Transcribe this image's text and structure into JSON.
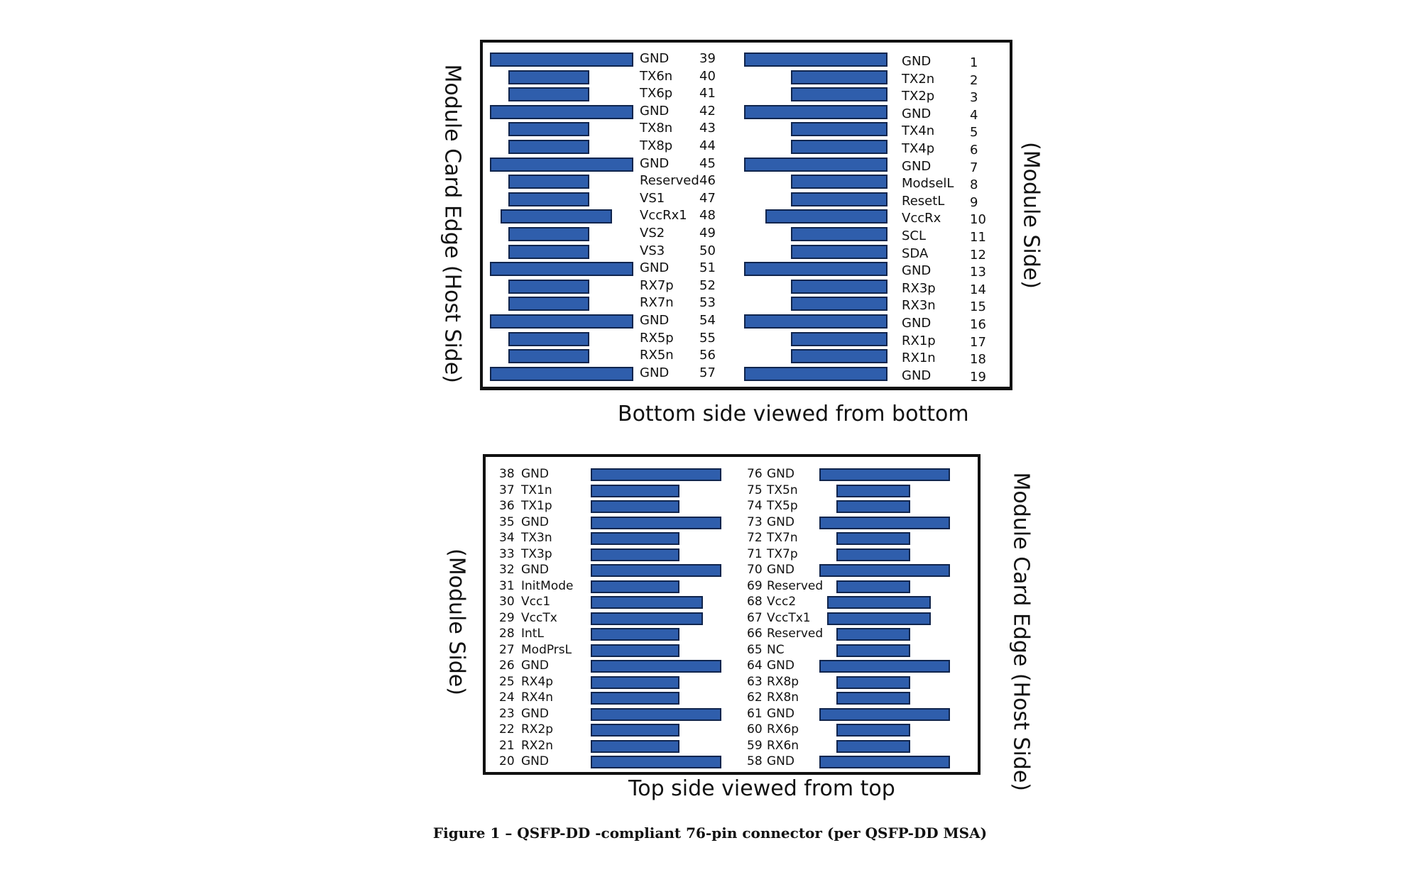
{
  "bottom_view": {
    "caption": "Bottom side viewed from bottom",
    "left_side_label": "Module Card Edge (Host Side)",
    "right_side_label": "(Module Side)",
    "left_column": [
      {
        "name": "GND",
        "pin": "39",
        "long": true
      },
      {
        "name": "TX6n",
        "pin": "40",
        "long": false
      },
      {
        "name": "TX6p",
        "pin": "41",
        "long": false
      },
      {
        "name": "GND",
        "pin": "42",
        "long": true
      },
      {
        "name": "TX8n",
        "pin": "43",
        "long": false
      },
      {
        "name": "TX8p",
        "pin": "44",
        "long": false
      },
      {
        "name": "GND",
        "pin": "45",
        "long": true
      },
      {
        "name": "Reserved",
        "pin": "46",
        "long": false
      },
      {
        "name": "VS1",
        "pin": "47",
        "long": false
      },
      {
        "name": "VccRx1",
        "pin": "48",
        "long": false
      },
      {
        "name": "VS2",
        "pin": "49",
        "long": false
      },
      {
        "name": "VS3",
        "pin": "50",
        "long": false
      },
      {
        "name": "GND",
        "pin": "51",
        "long": true
      },
      {
        "name": "RX7p",
        "pin": "52",
        "long": false
      },
      {
        "name": "RX7n",
        "pin": "53",
        "long": false
      },
      {
        "name": "GND",
        "pin": "54",
        "long": true
      },
      {
        "name": "RX5p",
        "pin": "55",
        "long": false
      },
      {
        "name": "RX5n",
        "pin": "56",
        "long": false
      },
      {
        "name": "GND",
        "pin": "57",
        "long": true
      }
    ],
    "right_column": [
      {
        "name": "GND",
        "pin": "1",
        "long": true
      },
      {
        "name": "TX2n",
        "pin": "2",
        "long": false
      },
      {
        "name": "TX2p",
        "pin": "3",
        "long": false
      },
      {
        "name": "GND",
        "pin": "4",
        "long": true
      },
      {
        "name": "TX4n",
        "pin": "5",
        "long": false
      },
      {
        "name": "TX4p",
        "pin": "6",
        "long": false
      },
      {
        "name": "GND",
        "pin": "7",
        "long": true
      },
      {
        "name": "ModselL",
        "pin": "8",
        "long": false
      },
      {
        "name": "ResetL",
        "pin": "9",
        "long": false
      },
      {
        "name": "VccRx",
        "pin": "10",
        "long": false
      },
      {
        "name": "SCL",
        "pin": "11",
        "long": false
      },
      {
        "name": "SDA",
        "pin": "12",
        "long": false
      },
      {
        "name": "GND",
        "pin": "13",
        "long": true
      },
      {
        "name": "RX3p",
        "pin": "14",
        "long": false
      },
      {
        "name": "RX3n",
        "pin": "15",
        "long": false
      },
      {
        "name": "GND",
        "pin": "16",
        "long": true
      },
      {
        "name": "RX1p",
        "pin": "17",
        "long": false
      },
      {
        "name": "RX1n",
        "pin": "18",
        "long": false
      },
      {
        "name": "GND",
        "pin": "19",
        "long": true
      }
    ]
  },
  "top_view": {
    "caption": "Top side viewed from top",
    "left_side_label": "(Module Side)",
    "right_side_label": "Module Card Edge (Host Side)",
    "left_column": [
      {
        "pin": "38",
        "name": "GND",
        "long": true
      },
      {
        "pin": "37",
        "name": "TX1n",
        "long": false
      },
      {
        "pin": "36",
        "name": "TX1p",
        "long": false
      },
      {
        "pin": "35",
        "name": "GND",
        "long": true
      },
      {
        "pin": "34",
        "name": "TX3n",
        "long": false
      },
      {
        "pin": "33",
        "name": "TX3p",
        "long": false
      },
      {
        "pin": "32",
        "name": "GND",
        "long": true
      },
      {
        "pin": "31",
        "name": "InitMode",
        "long": false
      },
      {
        "pin": "30",
        "name": "Vcc1",
        "long": false
      },
      {
        "pin": "29",
        "name": "VccTx",
        "long": false
      },
      {
        "pin": "28",
        "name": "IntL",
        "long": false
      },
      {
        "pin": "27",
        "name": "ModPrsL",
        "long": false
      },
      {
        "pin": "26",
        "name": "GND",
        "long": true
      },
      {
        "pin": "25",
        "name": "RX4p",
        "long": false
      },
      {
        "pin": "24",
        "name": "RX4n",
        "long": false
      },
      {
        "pin": "23",
        "name": "GND",
        "long": true
      },
      {
        "pin": "22",
        "name": "RX2p",
        "long": false
      },
      {
        "pin": "21",
        "name": "RX2n",
        "long": false
      },
      {
        "pin": "20",
        "name": "GND",
        "long": true
      }
    ],
    "right_column": [
      {
        "pin": "76",
        "name": "GND",
        "long": true
      },
      {
        "pin": "75",
        "name": "TX5n",
        "long": false
      },
      {
        "pin": "74",
        "name": "TX5p",
        "long": false
      },
      {
        "pin": "73",
        "name": "GND",
        "long": true
      },
      {
        "pin": "72",
        "name": "TX7n",
        "long": false
      },
      {
        "pin": "71",
        "name": "TX7p",
        "long": false
      },
      {
        "pin": "70",
        "name": "GND",
        "long": true
      },
      {
        "pin": "69",
        "name": "Reserved",
        "long": false
      },
      {
        "pin": "68",
        "name": "Vcc2",
        "long": false
      },
      {
        "pin": "67",
        "name": "VccTx1",
        "long": false
      },
      {
        "pin": "66",
        "name": "Reserved",
        "long": false
      },
      {
        "pin": "65",
        "name": "NC",
        "long": false
      },
      {
        "pin": "64",
        "name": "GND",
        "long": true
      },
      {
        "pin": "63",
        "name": "RX8p",
        "long": false
      },
      {
        "pin": "62",
        "name": "RX8n",
        "long": false
      },
      {
        "pin": "61",
        "name": "GND",
        "long": true
      },
      {
        "pin": "60",
        "name": "RX6p",
        "long": false
      },
      {
        "pin": "59",
        "name": "RX6n",
        "long": false
      },
      {
        "pin": "58",
        "name": "GND",
        "long": true
      }
    ]
  },
  "figure_caption": "Figure 1 – QSFP-DD -compliant 76-pin connector (per QSFP-DD MSA)",
  "colors": {
    "pad_fill": "#2f5eac",
    "pad_border": "#10254d",
    "frame": "#111111"
  }
}
